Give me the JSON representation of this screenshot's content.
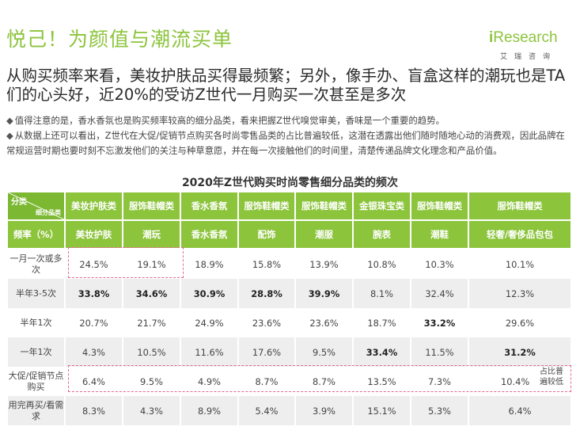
{
  "title": "悦己！为颜值与潮流买单",
  "logo": {
    "mark_i": "i",
    "mark_rest": "Research",
    "sub": "艾瑞咨询"
  },
  "headline": "从购买频率来看，美妆护肤品买得最频繁；另外，像手办、盲盒这样的潮玩也是TA们的心头好，近20%的受访Z世代一月购买一次甚至是多次",
  "bullets": [
    "值得注意的是，香水香氛也是购买频率较高的细分品类，看来把握Z世代嗅觉审美，香味是一个重要的趋势。",
    "从数据上还可以看出，Z世代在大促/促销节点购买各时尚零售品类的占比普遍较低，这潜在透露出他们随时随地心动的消费观，因此品牌在常规运营时期也要时刻不忘激发他们的关注与种草意愿，并在每一次接触他们的时间里，清楚传递品牌文化理念和产品价值。"
  ],
  "bullet_marker": "◆",
  "table": {
    "caption": "2020年Z世代购买时尚零售细分品类的频次",
    "corner_top": "分类",
    "corner_bottom": "细分品类",
    "categories": [
      "美妆护肤类",
      "服饰鞋帽类",
      "香水香氛",
      "服饰鞋帽类",
      "服饰鞋帽类",
      "金银珠宝类",
      "服饰鞋帽类",
      "服饰鞋帽类"
    ],
    "sub_header_label": "频率（%）",
    "subcategories": [
      "美妆护肤",
      "潮玩",
      "香水香氛",
      "配饰",
      "潮服",
      "腕表",
      "潮鞋",
      "轻奢/奢侈品包包"
    ],
    "rows": [
      {
        "label": "一月一次或多次",
        "values": [
          "24.5%",
          "19.1%",
          "18.9%",
          "15.8%",
          "13.9%",
          "10.8%",
          "10.3%",
          "10.1%"
        ]
      },
      {
        "label": "半年3-5次",
        "values": [
          "33.8%",
          "34.6%",
          "30.9%",
          "28.8%",
          "39.9%",
          "8.1%",
          "32.4%",
          "12.3%"
        ]
      },
      {
        "label": "半年1次",
        "values": [
          "20.7%",
          "21.7%",
          "24.9%",
          "23.6%",
          "23.6%",
          "18.7%",
          "33.2%",
          "29.6%"
        ]
      },
      {
        "label": "一年1次",
        "values": [
          "4.3%",
          "10.5%",
          "11.6%",
          "17.6%",
          "9.5%",
          "33.4%",
          "11.5%",
          "31.2%"
        ]
      },
      {
        "label": "大促/促销节点购买",
        "values": [
          "6.4%",
          "9.5%",
          "4.9%",
          "8.7%",
          "8.7%",
          "13.5%",
          "7.3%",
          "10.4%"
        ]
      },
      {
        "label": "用完再买/看需求",
        "values": [
          "8.3%",
          "4.3%",
          "8.9%",
          "5.4%",
          "3.9%",
          "15.1%",
          "5.3%",
          "6.4%"
        ]
      }
    ],
    "side_note": "占比普遍较低"
  },
  "colors": {
    "accent": "#8cc43c",
    "highlight_dash": "#e26b8a",
    "stripe": "#eeeeee"
  }
}
